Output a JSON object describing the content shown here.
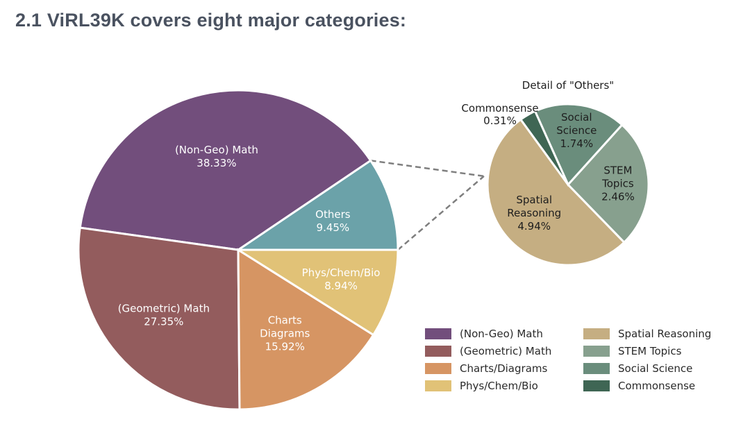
{
  "heading": "2.1 ViRL39K covers eight major categories:",
  "chart_data": [
    {
      "type": "pie",
      "title": "",
      "slices": [
        {
          "name": "(Non-Geo) Math",
          "value": 38.33,
          "label": "38.33%",
          "label_lines": [
            "(Non-Geo) Math",
            "38.33%"
          ],
          "color": "#724e7c"
        },
        {
          "name": "(Geometric) Math",
          "value": 27.35,
          "label": "27.35%",
          "label_lines": [
            "(Geometric) Math",
            "27.35%"
          ],
          "color": "#935c5d"
        },
        {
          "name": "Charts/Diagrams",
          "value": 15.92,
          "label": "15.92%",
          "label_lines": [
            "Charts",
            "Diagrams",
            "15.92%"
          ],
          "color": "#d69563"
        },
        {
          "name": "Phys/Chem/Bio",
          "value": 8.94,
          "label": "8.94%",
          "label_lines": [
            "Phys/Chem/Bio",
            "8.94%"
          ],
          "color": "#e1c277"
        },
        {
          "name": "Others",
          "value": 9.45,
          "label": "9.45%",
          "label_lines": [
            "Others",
            "9.45%"
          ],
          "color": "#6ba2a9"
        }
      ]
    },
    {
      "type": "pie",
      "title": "Detail of \"Others\"",
      "slices": [
        {
          "name": "Spatial Reasoning",
          "value": 4.94,
          "label": "4.94%",
          "label_lines": [
            "Spatial",
            "Reasoning",
            "4.94%"
          ],
          "color": "#c5ae82"
        },
        {
          "name": "STEM Topics",
          "value": 2.46,
          "label": "2.46%",
          "label_lines": [
            "STEM",
            "Topics",
            "2.46%"
          ],
          "color": "#87a08e"
        },
        {
          "name": "Social Science",
          "value": 1.74,
          "label": "1.74%",
          "label_lines": [
            "Social",
            "Science",
            "1.74%"
          ],
          "color": "#6a8d7c"
        },
        {
          "name": "Commonsense",
          "value": 0.31,
          "label": "0.31%",
          "label_lines": [
            "Commonsense",
            "0.31%"
          ],
          "color": "#3f6654"
        }
      ]
    }
  ],
  "legend": {
    "placement": "bottom-right",
    "columns": [
      [
        {
          "label": "(Non-Geo) Math",
          "color": "#724e7c"
        },
        {
          "label": "(Geometric) Math",
          "color": "#935c5d"
        },
        {
          "label": "Charts/Diagrams",
          "color": "#d69563"
        },
        {
          "label": "Phys/Chem/Bio",
          "color": "#e1c277"
        }
      ],
      [
        {
          "label": "Spatial Reasoning",
          "color": "#c5ae82"
        },
        {
          "label": "STEM Topics",
          "color": "#87a08e"
        },
        {
          "label": "Social Science",
          "color": "#6a8d7c"
        },
        {
          "label": "Commonsense",
          "color": "#3f6654"
        }
      ]
    ]
  }
}
